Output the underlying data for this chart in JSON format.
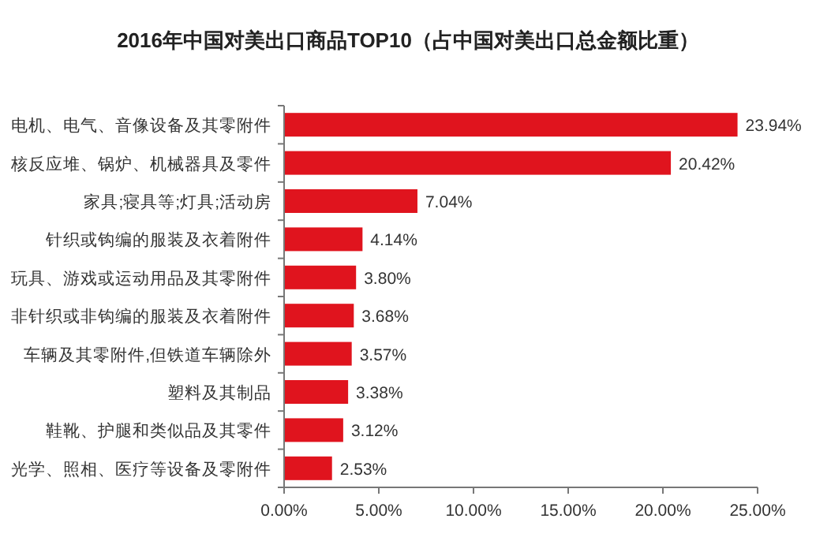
{
  "chart_data": {
    "type": "bar",
    "orientation": "horizontal",
    "title": "2016年中国对美出口商品TOP10（占中国对美出口总金额比重）",
    "categories": [
      "电机、电气、音像设备及其零附件",
      "核反应堆、锅炉、机械器具及零件",
      "家具;寝具等;灯具;活动房",
      "针织或钩编的服装及衣着附件",
      "玩具、游戏或运动用品及其零附件",
      "非针织或非钩编的服装及衣着附件",
      "车辆及其零附件,但铁道车辆除外",
      "塑料及其制品",
      "鞋靴、护腿和类似品及其零件",
      "光学、照相、医疗等设备及零附件"
    ],
    "values": [
      23.94,
      20.42,
      7.04,
      4.14,
      3.8,
      3.68,
      3.57,
      3.38,
      3.12,
      2.53
    ],
    "value_labels": [
      "23.94%",
      "20.42%",
      "7.04%",
      "4.14%",
      "3.80%",
      "3.68%",
      "3.57%",
      "3.38%",
      "3.12%",
      "2.53%"
    ],
    "color": "#e0141e",
    "xlim": [
      0,
      25
    ],
    "xticks": [
      {
        "value": 0,
        "label": "0.00%"
      },
      {
        "value": 5,
        "label": "5.00%"
      },
      {
        "value": 10,
        "label": "10.00%"
      },
      {
        "value": 15,
        "label": "15.00%"
      },
      {
        "value": 20,
        "label": "20.00%"
      },
      {
        "value": 25,
        "label": "25.00%"
      }
    ],
    "grid": false
  }
}
